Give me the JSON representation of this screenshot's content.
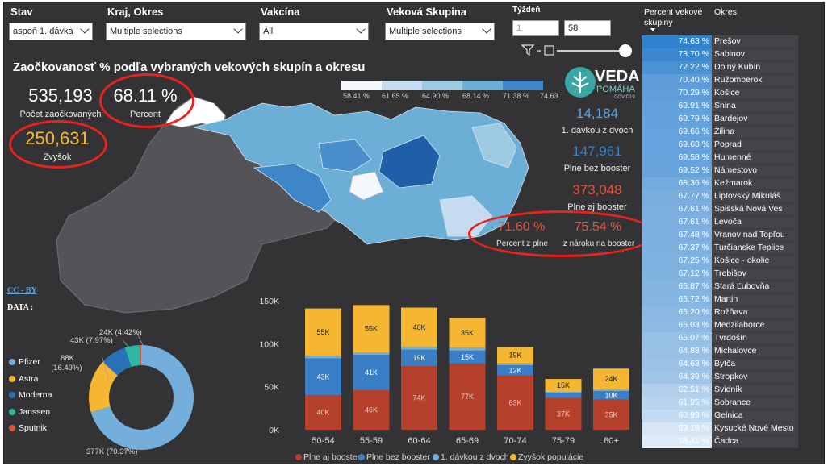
{
  "filters": {
    "stav": {
      "label": "Stav",
      "value": "aspoň 1. dávka"
    },
    "kraj": {
      "label": "Kraj, Okres",
      "value": "Multiple selections"
    },
    "vakcina": {
      "label": "Vakcína",
      "value": "All"
    },
    "vekova": {
      "label": "Veková Skupina",
      "value": "Multiple selections"
    },
    "tyzden": {
      "label": "Týždeň",
      "from": "1",
      "to": "58"
    }
  },
  "title": "Zaočkovanosť % podľa vybraných vekových skupín a okresu",
  "kpis": {
    "pocet": {
      "value": "535,193",
      "label": "Počet zaočkovaných"
    },
    "percent": {
      "value": "68.11 %",
      "label": "Percent"
    },
    "zvysok": {
      "value": "250,631",
      "label": "Zvyšok"
    },
    "jedna_davka": {
      "value": "14,184",
      "label": "1. dávkou z dvoch"
    },
    "plne_bez": {
      "value": "147,961",
      "label": "Plne bez booster"
    },
    "plne_aj": {
      "value": "373,048",
      "label": "Plne aj booster"
    },
    "percent_plne": {
      "value": "71.60 %",
      "label": "Percent z plne"
    },
    "narok": {
      "value": "75.54 %",
      "label": "z nároku na booster"
    }
  },
  "map_legend": {
    "ticks": [
      "58.41 %",
      "61.65 %",
      "64.90 %",
      "68.14 %",
      "71.38 %",
      "74.63"
    ],
    "colors": [
      "#f4f8fd",
      "#c6dbef",
      "#9ecae1",
      "#6baed6",
      "#3f86c9",
      "#1f5fa8"
    ]
  },
  "logo": {
    "title": "VEDA",
    "subtitle": "POMÁHA",
    "tag": "COVID19"
  },
  "license": {
    "link": "CC - BY",
    "data_label": "DATA :"
  },
  "colors": {
    "pfizer": "#74aedb",
    "astra": "#f5b731",
    "moderna": "#2a72b8",
    "janssen": "#2db7a4",
    "sputnik": "#d9533b",
    "plne_aj": "#b5402c",
    "plne_bez": "#3a7ec5",
    "jedna": "#74aedb",
    "zvysok": "#f5b731"
  },
  "table": {
    "header_pct": "Percent vekové skupiny",
    "header_okres": "Okres",
    "rows": [
      {
        "pct": "74.63 %",
        "okres": "Prešov",
        "v": 74.63
      },
      {
        "pct": "73.70 %",
        "okres": "Sabinov",
        "v": 73.7
      },
      {
        "pct": "72.22 %",
        "okres": "Dolný Kubín",
        "v": 72.22
      },
      {
        "pct": "70.40 %",
        "okres": "Ružomberok",
        "v": 70.4
      },
      {
        "pct": "70.29 %",
        "okres": "Košice",
        "v": 70.29
      },
      {
        "pct": "69.91 %",
        "okres": "Snina",
        "v": 69.91
      },
      {
        "pct": "69.79 %",
        "okres": "Bardejov",
        "v": 69.79
      },
      {
        "pct": "69.66 %",
        "okres": "Žilina",
        "v": 69.66
      },
      {
        "pct": "69.63 %",
        "okres": "Poprad",
        "v": 69.63
      },
      {
        "pct": "69.58 %",
        "okres": "Humenné",
        "v": 69.58
      },
      {
        "pct": "69.52 %",
        "okres": "Námestovo",
        "v": 69.52
      },
      {
        "pct": "68.36 %",
        "okres": "Kežmarok",
        "v": 68.36
      },
      {
        "pct": "67.77 %",
        "okres": "Liptovský Mikuláš",
        "v": 67.77
      },
      {
        "pct": "67.61 %",
        "okres": "Spišská Nová Ves",
        "v": 67.61
      },
      {
        "pct": "67.61 %",
        "okres": "Levoča",
        "v": 67.61
      },
      {
        "pct": "67.48 %",
        "okres": "Vranov nad Topľou",
        "v": 67.48
      },
      {
        "pct": "67.37 %",
        "okres": "Turčianske Teplice",
        "v": 67.37
      },
      {
        "pct": "67.25 %",
        "okres": "Košice - okolie",
        "v": 67.25
      },
      {
        "pct": "67.12 %",
        "okres": "Trebišov",
        "v": 67.12
      },
      {
        "pct": "66.87 %",
        "okres": "Stará Ľubovňa",
        "v": 66.87
      },
      {
        "pct": "66.72 %",
        "okres": "Martin",
        "v": 66.72
      },
      {
        "pct": "66.20 %",
        "okres": "Rožňava",
        "v": 66.2
      },
      {
        "pct": "66.03 %",
        "okres": "Medzilaborce",
        "v": 66.03
      },
      {
        "pct": "65.07 %",
        "okres": "Tvrdošín",
        "v": 65.07
      },
      {
        "pct": "64.88 %",
        "okres": "Michalovce",
        "v": 64.88
      },
      {
        "pct": "64.63 %",
        "okres": "Bytča",
        "v": 64.63
      },
      {
        "pct": "64.39 %",
        "okres": "Stropkov",
        "v": 64.39
      },
      {
        "pct": "62.51 %",
        "okres": "Svidník",
        "v": 62.51
      },
      {
        "pct": "61.95 %",
        "okres": "Sobrance",
        "v": 61.95
      },
      {
        "pct": "60.93 %",
        "okres": "Gelnica",
        "v": 60.93
      },
      {
        "pct": "59.18 %",
        "okres": "Kysucké Nové Mesto",
        "v": 59.18
      },
      {
        "pct": "58.41 %",
        "okres": "Čadca",
        "v": 58.41
      }
    ]
  },
  "chart_data": [
    {
      "type": "pie",
      "title": "",
      "categories": [
        "Pfizer",
        "Astra",
        "Moderna",
        "Janssen",
        "Sputnik"
      ],
      "values": [
        377,
        88,
        43,
        24,
        3
      ],
      "labels": [
        "377K (70.37%)",
        "88K (16.49%)",
        "43K (7.97%)",
        "24K (4.42%)",
        ""
      ],
      "legend": "left"
    },
    {
      "type": "bar",
      "stacked": true,
      "categories": [
        "50-54",
        "55-59",
        "60-64",
        "65-69",
        "70-74",
        "75-79",
        "80+"
      ],
      "ylim": [
        0,
        150000
      ],
      "yticks": [
        "0K",
        "50K",
        "100K",
        "150K"
      ],
      "legend": "bottom",
      "series": [
        {
          "name": "Plne aj booster",
          "values": [
            40,
            46,
            74,
            77,
            63,
            37,
            35
          ],
          "labels": [
            "40K",
            "46K",
            "74K",
            "77K",
            "63K",
            "37K",
            "35K"
          ]
        },
        {
          "name": "Plne bez booster",
          "values": [
            43,
            41,
            19,
            15,
            12,
            6,
            10
          ],
          "labels": [
            "43K",
            "41K",
            "19K",
            "15K",
            "12K",
            "",
            "10K"
          ]
        },
        {
          "name": "1. dávkou z dvoch",
          "values": [
            3,
            3,
            3,
            3,
            2,
            1,
            2
          ],
          "labels": [
            "",
            "",
            "",
            "",
            "",
            "",
            ""
          ]
        },
        {
          "name": "Zvyšok populácie",
          "values": [
            55,
            55,
            46,
            35,
            19,
            15,
            24
          ],
          "labels": [
            "55K",
            "55K",
            "46K",
            "35K",
            "19K",
            "15K",
            "24K"
          ]
        }
      ]
    }
  ]
}
